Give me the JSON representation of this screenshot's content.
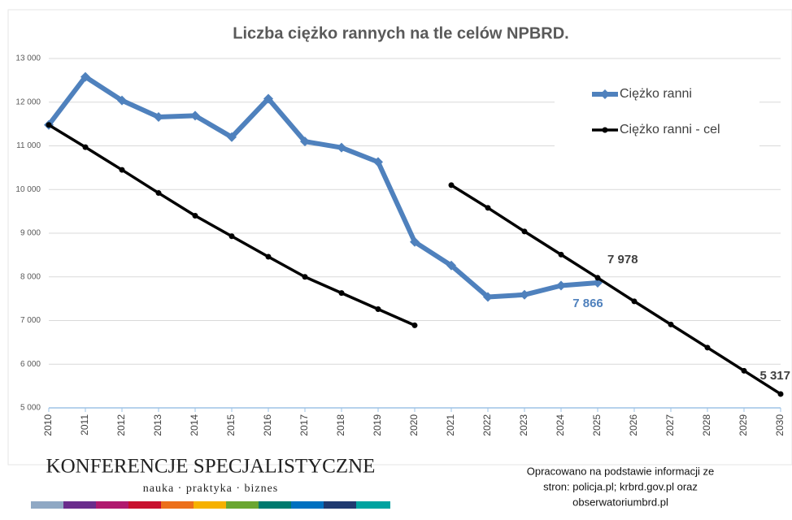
{
  "chart_data": {
    "type": "line",
    "title": "Liczba ciężko rannych na tle celów NPBRD.",
    "x": [
      2010,
      2011,
      2012,
      2013,
      2014,
      2015,
      2016,
      2017,
      2018,
      2019,
      2020,
      2021,
      2022,
      2023,
      2024,
      2025,
      2026,
      2027,
      2028,
      2029,
      2030
    ],
    "xlim": [
      2010,
      2030
    ],
    "xticks": [
      2010,
      2011,
      2012,
      2013,
      2014,
      2015,
      2016,
      2017,
      2018,
      2019,
      2020,
      2021,
      2022,
      2023,
      2024,
      2025,
      2026,
      2027,
      2028,
      2029,
      2030
    ],
    "ylim": [
      5000,
      13000
    ],
    "yticks": [
      {
        "value": 5000,
        "label": "5 000"
      },
      {
        "value": 6000,
        "label": "6 000"
      },
      {
        "value": 7000,
        "label": "7 000"
      },
      {
        "value": 8000,
        "label": "8 000"
      },
      {
        "value": 9000,
        "label": "9 000"
      },
      {
        "value": 10000,
        "label": "10 000"
      },
      {
        "value": 11000,
        "label": "11 000"
      },
      {
        "value": 12000,
        "label": "12 000"
      },
      {
        "value": 13000,
        "label": "13 000"
      }
    ],
    "grid": true,
    "legend": "upper right",
    "series": [
      {
        "name": "Ciężko ranni",
        "color": "#4f81bd",
        "marker": "diamond",
        "values": [
          11480,
          12580,
          12040,
          11660,
          11690,
          11200,
          12080,
          11100,
          10960,
          10630,
          8800,
          8260,
          7540,
          7590,
          7800,
          7866,
          null,
          null,
          null,
          null,
          null
        ],
        "value_labels": [
          null,
          null,
          null,
          null,
          null,
          null,
          null,
          null,
          null,
          null,
          null,
          null,
          null,
          null,
          null,
          "7 866",
          null,
          null,
          null,
          null,
          null
        ]
      },
      {
        "name": "Ciężko ranni - cel",
        "color": "#000000",
        "marker": "circle",
        "breaks": [
          2020
        ],
        "values": [
          11480,
          10970,
          10450,
          9920,
          9400,
          8930,
          8460,
          8000,
          7630,
          7260,
          6890,
          10100,
          9580,
          9040,
          8510,
          7978,
          7440,
          6910,
          6380,
          5850,
          5317
        ],
        "value_labels": [
          null,
          null,
          null,
          null,
          null,
          null,
          null,
          null,
          null,
          null,
          null,
          null,
          null,
          null,
          null,
          "7 978",
          null,
          null,
          null,
          null,
          "5 317"
        ]
      }
    ]
  },
  "footer": {
    "brand": "KONFERENCJE SPECJALISTYCZNE",
    "tagline": "nauka · praktyka · biznes",
    "source": [
      "Opracowano na podstawie informacji ze",
      "stron: policja.pl; krbrd.gov.pl oraz",
      "obserwatoriumbrd.pl"
    ]
  }
}
